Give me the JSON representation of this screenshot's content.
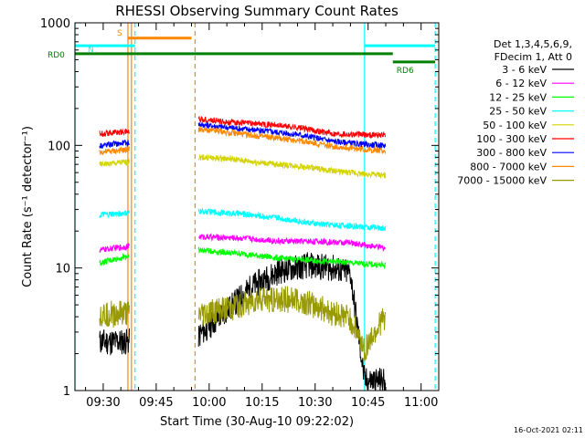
{
  "chart_data": {
    "type": "line",
    "title": "RHESSI Observing Summary Count Rates",
    "xlabel": "Start Time (30-Aug-10 09:22:02)",
    "ylabel": "Count Rate (s⁻¹ detector⁻¹)",
    "yscale": "log",
    "ylim": [
      1,
      1000
    ],
    "xlim_minutes": [
      562,
      665
    ],
    "x_ticks": [
      {
        "label": "09:30",
        "minutes": 570
      },
      {
        "label": "09:45",
        "minutes": 585
      },
      {
        "label": "10:00",
        "minutes": 600
      },
      {
        "label": "10:15",
        "minutes": 615
      },
      {
        "label": "10:30",
        "minutes": 630
      },
      {
        "label": "10:45",
        "minutes": 645
      },
      {
        "label": "11:00",
        "minutes": 660
      }
    ],
    "y_ticks": [
      {
        "label": "1",
        "value": 1
      },
      {
        "label": "10",
        "value": 10
      },
      {
        "label": "100",
        "value": 100
      },
      {
        "label": "1000",
        "value": 1000
      }
    ],
    "legend_header": [
      "Det 1,3,4,5,6,9,",
      "FDecim 1, Att 0"
    ],
    "legend_position": "right",
    "segments_minutes": [
      [
        569,
        577.5
      ],
      [
        597,
        650
      ]
    ],
    "series": [
      {
        "name": "3 - 6 keV",
        "color": "#000000",
        "points": [
          [
            569,
            2.5
          ],
          [
            577,
            2.5
          ],
          [
            597,
            2.8
          ],
          [
            605,
            4.5
          ],
          [
            612,
            7
          ],
          [
            620,
            9.5
          ],
          [
            628,
            10.5
          ],
          [
            635,
            10
          ],
          [
            640,
            9
          ],
          [
            644,
            1.2
          ],
          [
            650,
            1.2
          ]
        ]
      },
      {
        "name": "6 - 12 keV",
        "color": "#ff00ff",
        "points": [
          [
            569,
            14
          ],
          [
            577,
            15
          ],
          [
            597,
            18
          ],
          [
            610,
            17.5
          ],
          [
            620,
            16.5
          ],
          [
            630,
            16.5
          ],
          [
            640,
            16
          ],
          [
            650,
            14.5
          ]
        ]
      },
      {
        "name": "12 - 25 keV",
        "color": "#00ff00",
        "points": [
          [
            569,
            11
          ],
          [
            577,
            12.5
          ],
          [
            597,
            14
          ],
          [
            610,
            13
          ],
          [
            620,
            12
          ],
          [
            630,
            11.5
          ],
          [
            640,
            11
          ],
          [
            650,
            10.5
          ]
        ]
      },
      {
        "name": "25 - 50 keV",
        "color": "#00ffff",
        "points": [
          [
            569,
            27
          ],
          [
            577,
            28
          ],
          [
            597,
            29
          ],
          [
            610,
            27.5
          ],
          [
            620,
            25.5
          ],
          [
            630,
            23
          ],
          [
            640,
            22
          ],
          [
            650,
            21
          ]
        ]
      },
      {
        "name": "50 - 100 keV",
        "color": "#d4d400",
        "points": [
          [
            569,
            70
          ],
          [
            577,
            73
          ],
          [
            597,
            80
          ],
          [
            605,
            78
          ],
          [
            615,
            72
          ],
          [
            625,
            68
          ],
          [
            635,
            62
          ],
          [
            645,
            58
          ],
          [
            650,
            57
          ]
        ]
      },
      {
        "name": "100 - 300 keV",
        "color": "#ff0000",
        "points": [
          [
            569,
            125
          ],
          [
            577,
            130
          ],
          [
            597,
            165
          ],
          [
            605,
            155
          ],
          [
            615,
            150
          ],
          [
            625,
            140
          ],
          [
            635,
            125
          ],
          [
            645,
            122
          ],
          [
            650,
            122
          ]
        ]
      },
      {
        "name": "300 - 800 keV",
        "color": "#0000ff",
        "points": [
          [
            569,
            100
          ],
          [
            577,
            105
          ],
          [
            597,
            148
          ],
          [
            605,
            140
          ],
          [
            615,
            132
          ],
          [
            625,
            123
          ],
          [
            635,
            108
          ],
          [
            645,
            101
          ],
          [
            650,
            100
          ]
        ]
      },
      {
        "name": "800 - 7000 keV",
        "color": "#ff8800",
        "points": [
          [
            569,
            88
          ],
          [
            577,
            92
          ],
          [
            597,
            135
          ],
          [
            605,
            128
          ],
          [
            615,
            118
          ],
          [
            625,
            110
          ],
          [
            635,
            98
          ],
          [
            645,
            92
          ],
          [
            650,
            90
          ]
        ]
      },
      {
        "name": "7000 - 15000 keV",
        "color": "#999900",
        "points": [
          [
            569,
            4.2
          ],
          [
            577,
            4.2
          ],
          [
            597,
            4.1
          ],
          [
            605,
            4.6
          ],
          [
            615,
            5.6
          ],
          [
            625,
            5.5
          ],
          [
            632,
            4.6
          ],
          [
            640,
            3.8
          ],
          [
            644,
            2.2
          ],
          [
            650,
            4.1
          ]
        ]
      }
    ],
    "bars": [
      {
        "label": "S",
        "color": "#ff8800",
        "x": [
          577,
          595
        ],
        "y": 750
      },
      {
        "label": "N",
        "color": "#00ffff",
        "x": [
          562,
          579
        ],
        "y": 650
      },
      {
        "label": "",
        "color": "#00ffff",
        "x": [
          644,
          664
        ],
        "y": 650
      },
      {
        "label": "RD0",
        "color": "#008000",
        "x": [
          562,
          652
        ],
        "y": 560
      },
      {
        "label": "RD6",
        "color": "#008000",
        "x": [
          652,
          664
        ],
        "y": 480
      }
    ],
    "vlines": [
      {
        "minutes": 562,
        "color": "#00ffff",
        "style": "solid"
      },
      {
        "minutes": 577,
        "color": "#ff8800",
        "style": "solid"
      },
      {
        "minutes": 578,
        "color": "#ff8800",
        "style": "solid"
      },
      {
        "minutes": 579,
        "color": "#00ffff",
        "style": "dashed"
      },
      {
        "minutes": 596,
        "color": "#ff8800",
        "style": "dashed"
      },
      {
        "minutes": 644,
        "color": "#00ffff",
        "style": "solid"
      },
      {
        "minutes": 664,
        "color": "#00ffff",
        "style": "dashed"
      }
    ],
    "timestamp": "16-Oct-2021 02:11"
  }
}
